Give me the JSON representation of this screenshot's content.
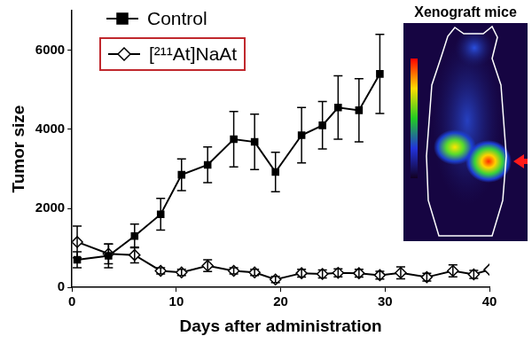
{
  "chart_data": {
    "type": "line",
    "x_label": "Days after administration",
    "y_label": "Tumor size",
    "xlim": [
      0,
      40
    ],
    "xticks": [
      0,
      10,
      20,
      30,
      40
    ],
    "ylim": [
      0,
      7000
    ],
    "yticks": [
      0,
      2000,
      4000,
      6000
    ],
    "grid": false,
    "legend": "upper left",
    "annotations": [
      "Xenograft mice"
    ],
    "series": [
      {
        "name": "Control",
        "color": "#000000",
        "marker": "square",
        "line_style": "solid",
        "x": [
          0.5,
          3.5,
          6,
          8.5,
          10.5,
          13,
          15.5,
          17.5,
          19.5,
          22,
          24,
          25.5,
          27.5,
          29.5
        ],
        "values": [
          700,
          800,
          1300,
          1850,
          2850,
          3100,
          3750,
          3680,
          2920,
          3850,
          4100,
          4550,
          4480,
          5400
        ],
        "errors": [
          200,
          300,
          300,
          400,
          400,
          450,
          700,
          700,
          500,
          700,
          600,
          800,
          800,
          1000
        ]
      },
      {
        "name": "[²¹¹At]NaAt",
        "color": "#000000",
        "marker": "diamond",
        "line_style": "solid",
        "x": [
          0.5,
          3.5,
          6,
          8.5,
          10.5,
          13,
          15.5,
          17.5,
          19.5,
          22,
          24,
          25.5,
          27.5,
          29.5,
          31.5,
          34,
          36.5,
          38.5,
          40
        ],
        "values": [
          1150,
          850,
          820,
          420,
          380,
          550,
          420,
          380,
          200,
          360,
          340,
          370,
          360,
          310,
          370,
          260,
          420,
          330,
          450
        ],
        "errors": [
          400,
          250,
          200,
          80,
          80,
          150,
          80,
          80,
          80,
          100,
          100,
          100,
          100,
          100,
          150,
          100,
          150,
          100,
          null
        ]
      }
    ]
  }
}
